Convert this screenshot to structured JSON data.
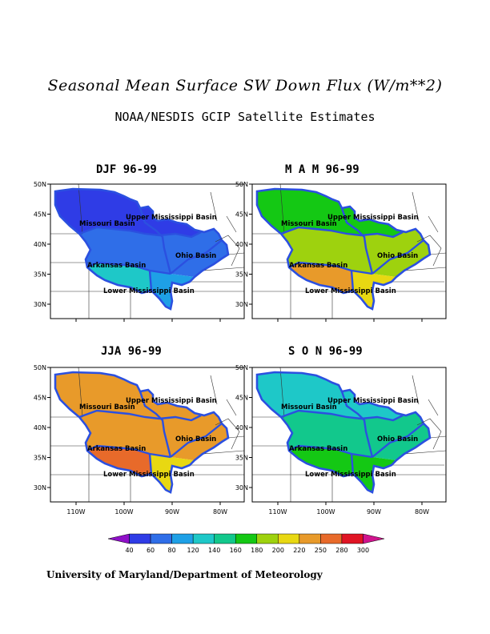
{
  "figure": {
    "title": "Seasonal Mean Surface SW Down Flux (W/m**2)",
    "subtitle": "NOAA/NESDIS GCIP Satellite Estimates",
    "credit": "University of Maryland/Department of Meteorology"
  },
  "chart_data": {
    "type": "heatmap",
    "units": "W/m**2",
    "x_ticks": [
      "110W",
      "100W",
      "90W",
      "80W"
    ],
    "y_ticks": [
      "50N",
      "45N",
      "40N",
      "35N",
      "30N"
    ],
    "region_labels": [
      "Upper Mississippi Basin",
      "Missouri Basin",
      "Ohio Basin",
      "Arkansas Basin",
      "Lower Mississippi Basin"
    ],
    "colorbar": {
      "labels": [
        "40",
        "60",
        "80",
        "120",
        "140",
        "160",
        "180",
        "200",
        "220",
        "250",
        "280",
        "300"
      ],
      "colors": [
        "#8f10c8",
        "#2f3ce6",
        "#2f6ee8",
        "#1ea0e6",
        "#1ec8c8",
        "#12c88c",
        "#14c814",
        "#9ed20e",
        "#e8d812",
        "#e89a2a",
        "#e86a2a",
        "#e01424",
        "#d0148e"
      ]
    },
    "panels": [
      {
        "title": "DJF 96-99",
        "season": "DJF",
        "regions": {
          "north": 60,
          "mid": 80,
          "south": 120,
          "southwest": 140
        }
      },
      {
        "title": "M A M 96-99",
        "season": "MAM",
        "regions": {
          "north": 180,
          "mid": 200,
          "south": 220,
          "southwest": 250
        }
      },
      {
        "title": "JJA 96-99",
        "season": "JJA",
        "regions": {
          "north": 250,
          "mid": 250,
          "south": 220,
          "southwest": 280
        }
      },
      {
        "title": "S O N 96-99",
        "season": "SON",
        "regions": {
          "north": 140,
          "mid": 160,
          "south": 180,
          "southwest": 180
        }
      }
    ]
  }
}
